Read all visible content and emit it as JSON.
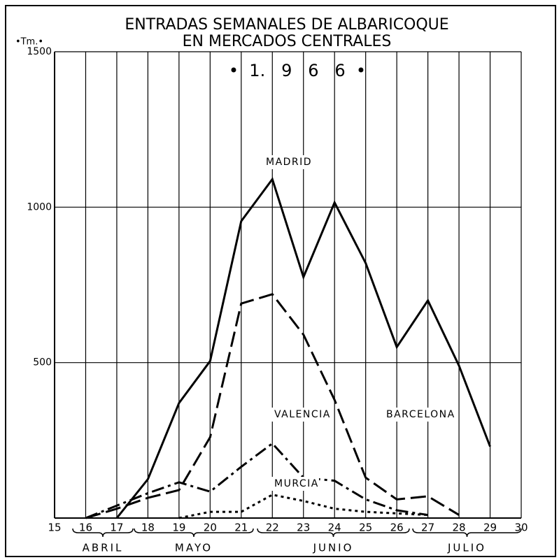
{
  "chart_data": {
    "type": "line",
    "title": "ENTRADAS SEMANALES DE ALBARICOQUE",
    "subtitle": "EN MERCADOS CENTRALES",
    "year_label": "•  1.   9   6   6  •",
    "y_label": "•Tm.•",
    "x": [
      16,
      17,
      18,
      19,
      20,
      21,
      22,
      23,
      24,
      25,
      26,
      27,
      28,
      29
    ],
    "series": [
      {
        "name": "MADRID",
        "color": "#000000",
        "style": "solid",
        "values": [
          null,
          0,
          125,
          370,
          505,
          955,
          1090,
          775,
          1015,
          820,
          550,
          700,
          490,
          230
        ]
      },
      {
        "name": "BARCELONA",
        "color": "#000000",
        "style": "dashed",
        "values": [
          0,
          30,
          65,
          90,
          260,
          690,
          720,
          590,
          380,
          130,
          60,
          70,
          10,
          null
        ]
      },
      {
        "name": "VALENCIA",
        "color": "#000000",
        "style": "dashdot",
        "values": [
          0,
          40,
          80,
          115,
          85,
          165,
          240,
          130,
          120,
          60,
          25,
          10,
          null,
          null
        ]
      },
      {
        "name": "MURCIA",
        "color": "#000000",
        "style": "dotted",
        "values": [
          null,
          null,
          null,
          0,
          20,
          20,
          75,
          55,
          30,
          20,
          15,
          10,
          null,
          null
        ]
      }
    ],
    "xlim": [
      15,
      30
    ],
    "xticks": [
      15,
      16,
      17,
      18,
      19,
      20,
      21,
      22,
      23,
      24,
      25,
      26,
      27,
      28,
      29,
      30
    ],
    "ylim": [
      0,
      1500
    ],
    "yticks": [
      500,
      1000,
      1500
    ],
    "months": [
      "ABRIL",
      "MAYO",
      "JUNIO",
      "JULIO"
    ],
    "grid": true
  }
}
